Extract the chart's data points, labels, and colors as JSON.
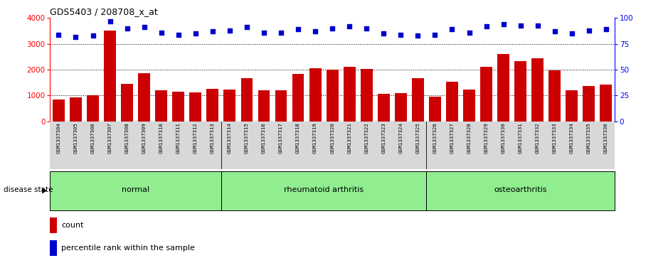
{
  "title": "GDS5403 / 208708_x_at",
  "samples": [
    "GSM1337304",
    "GSM1337305",
    "GSM1337306",
    "GSM1337307",
    "GSM1337308",
    "GSM1337309",
    "GSM1337310",
    "GSM1337311",
    "GSM1337312",
    "GSM1337313",
    "GSM1337314",
    "GSM1337315",
    "GSM1337316",
    "GSM1337317",
    "GSM1337318",
    "GSM1337319",
    "GSM1337320",
    "GSM1337321",
    "GSM1337322",
    "GSM1337323",
    "GSM1337324",
    "GSM1337325",
    "GSM1337326",
    "GSM1337327",
    "GSM1337328",
    "GSM1337329",
    "GSM1337330",
    "GSM1337331",
    "GSM1337332",
    "GSM1337333",
    "GSM1337334",
    "GSM1337335",
    "GSM1337336"
  ],
  "counts": [
    850,
    930,
    1020,
    3520,
    1450,
    1850,
    1200,
    1150,
    1130,
    1250,
    1230,
    1660,
    1200,
    1200,
    1830,
    2050,
    2000,
    2120,
    2020,
    1060,
    1080,
    1660,
    950,
    1530,
    1240,
    2120,
    2620,
    2340,
    2440,
    1970,
    1190,
    1380,
    1430
  ],
  "percentiles": [
    84,
    82,
    83,
    97,
    90,
    91,
    86,
    84,
    85,
    87,
    88,
    91,
    86,
    86,
    89,
    87,
    90,
    92,
    90,
    85,
    84,
    83,
    84,
    89,
    86,
    92,
    94,
    93,
    93,
    87,
    85,
    88,
    89
  ],
  "group_defs": [
    {
      "label": "normal",
      "start": 0,
      "end": 9
    },
    {
      "label": "rheumatoid arthritis",
      "start": 10,
      "end": 21
    },
    {
      "label": "osteoarthritis",
      "start": 22,
      "end": 32
    }
  ],
  "bar_color": "#CC0000",
  "dot_color": "#0000CC",
  "ylim_left": [
    0,
    4000
  ],
  "ylim_right": [
    0,
    100
  ],
  "yticks_left": [
    0,
    1000,
    2000,
    3000,
    4000
  ],
  "yticks_right": [
    0,
    25,
    50,
    75,
    100
  ],
  "disease_state_label": "disease state",
  "legend_count_label": "count",
  "legend_pct_label": "percentile rank within the sample",
  "group_color": "#90EE90",
  "xtick_bg": "#d8d8d8"
}
